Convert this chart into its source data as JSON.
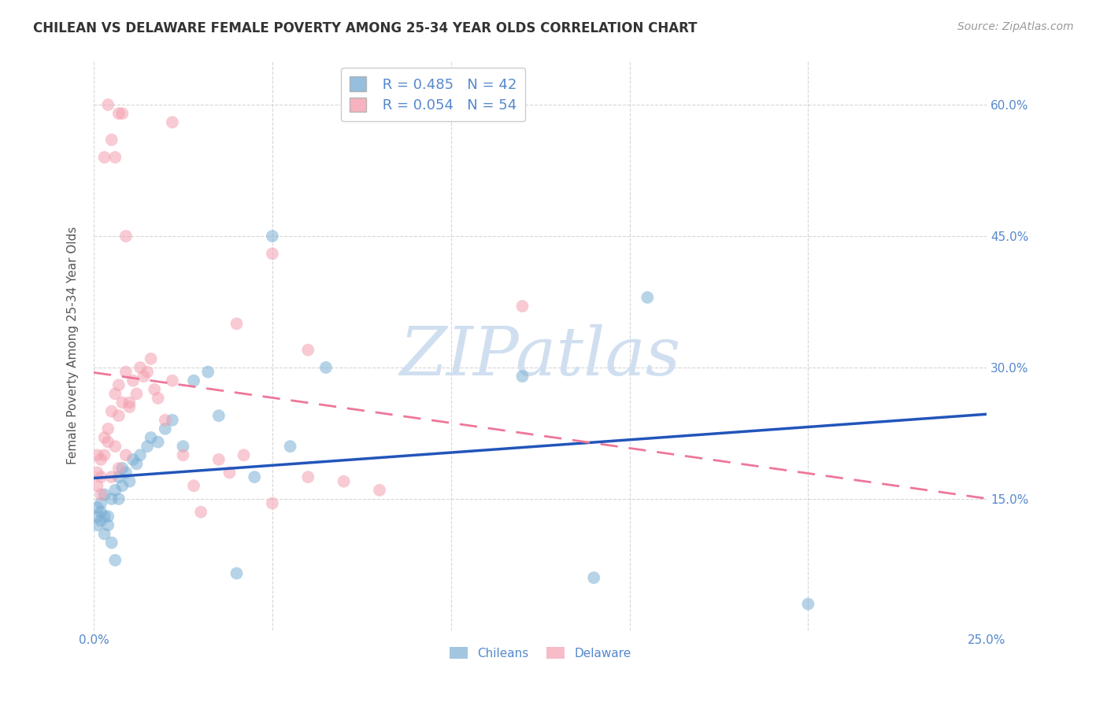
{
  "title": "CHILEAN VS DELAWARE FEMALE POVERTY AMONG 25-34 YEAR OLDS CORRELATION CHART",
  "source": "Source: ZipAtlas.com",
  "ylabel": "Female Poverty Among 25-34 Year Olds",
  "xlim": [
    0.0,
    0.25
  ],
  "ylim": [
    0.0,
    0.65
  ],
  "xticks": [
    0.0,
    0.05,
    0.1,
    0.15,
    0.2,
    0.25
  ],
  "yticks": [
    0.0,
    0.15,
    0.3,
    0.45,
    0.6
  ],
  "ytick_labels": [
    "",
    "15.0%",
    "30.0%",
    "45.0%",
    "60.0%"
  ],
  "xtick_labels": [
    "0.0%",
    "",
    "",
    "",
    "",
    "25.0%"
  ],
  "chileans_R": 0.485,
  "chileans_N": 42,
  "delaware_R": 0.054,
  "delaware_N": 54,
  "blue_color": "#7BAFD4",
  "pink_color": "#F4A0B0",
  "trend_blue": "#2255BB",
  "trend_pink": "#EE7799",
  "tick_color": "#5588CC",
  "grid_color": "#CCCCCC",
  "title_color": "#333333",
  "watermark_color": "#D0DFF0",
  "chileans_x": [
    0.001,
    0.001,
    0.001,
    0.002,
    0.002,
    0.002,
    0.003,
    0.003,
    0.003,
    0.004,
    0.004,
    0.005,
    0.005,
    0.006,
    0.006,
    0.007,
    0.007,
    0.008,
    0.008,
    0.009,
    0.01,
    0.011,
    0.012,
    0.013,
    0.015,
    0.016,
    0.018,
    0.02,
    0.022,
    0.025,
    0.028,
    0.032,
    0.035,
    0.04,
    0.045,
    0.05,
    0.055,
    0.065,
    0.12,
    0.14,
    0.155,
    0.2
  ],
  "chileans_y": [
    0.13,
    0.14,
    0.12,
    0.135,
    0.145,
    0.125,
    0.13,
    0.155,
    0.11,
    0.12,
    0.13,
    0.15,
    0.1,
    0.16,
    0.08,
    0.15,
    0.175,
    0.165,
    0.185,
    0.18,
    0.17,
    0.195,
    0.19,
    0.2,
    0.21,
    0.22,
    0.215,
    0.23,
    0.24,
    0.21,
    0.285,
    0.295,
    0.245,
    0.065,
    0.175,
    0.45,
    0.21,
    0.3,
    0.29,
    0.06,
    0.38,
    0.03
  ],
  "delaware_x": [
    0.001,
    0.001,
    0.001,
    0.002,
    0.002,
    0.002,
    0.003,
    0.003,
    0.004,
    0.004,
    0.005,
    0.005,
    0.006,
    0.006,
    0.007,
    0.007,
    0.007,
    0.008,
    0.009,
    0.009,
    0.01,
    0.01,
    0.011,
    0.012,
    0.013,
    0.014,
    0.015,
    0.016,
    0.017,
    0.018,
    0.02,
    0.022,
    0.025,
    0.028,
    0.03,
    0.035,
    0.038,
    0.042,
    0.05,
    0.06,
    0.07,
    0.08,
    0.04,
    0.05,
    0.12,
    0.06,
    0.022,
    0.008,
    0.003,
    0.004,
    0.005,
    0.006,
    0.007,
    0.009
  ],
  "delaware_y": [
    0.18,
    0.2,
    0.165,
    0.175,
    0.195,
    0.155,
    0.2,
    0.22,
    0.215,
    0.23,
    0.175,
    0.25,
    0.21,
    0.27,
    0.185,
    0.245,
    0.28,
    0.26,
    0.2,
    0.295,
    0.255,
    0.26,
    0.285,
    0.27,
    0.3,
    0.29,
    0.295,
    0.31,
    0.275,
    0.265,
    0.24,
    0.285,
    0.2,
    0.165,
    0.135,
    0.195,
    0.18,
    0.2,
    0.145,
    0.175,
    0.17,
    0.16,
    0.35,
    0.43,
    0.37,
    0.32,
    0.58,
    0.59,
    0.54,
    0.6,
    0.56,
    0.54,
    0.59,
    0.45
  ]
}
